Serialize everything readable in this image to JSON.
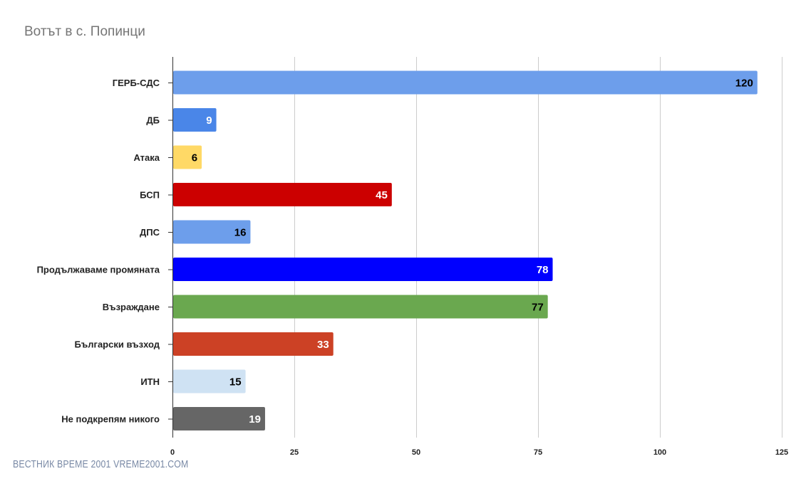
{
  "chart_data": {
    "type": "bar",
    "orientation": "horizontal",
    "title": "Вотът в с. Попинци",
    "xlabel": "",
    "ylabel": "",
    "xlim": [
      0,
      125
    ],
    "x_ticks": [
      0,
      25,
      50,
      75,
      100,
      125
    ],
    "grid": true,
    "legend": "none",
    "categories": [
      "ГЕРБ-СДС",
      "ДБ",
      "Атака",
      "БСП",
      "ДПС",
      "Продължаваме промяната",
      "Възраждане",
      "Български възход",
      "ИТН",
      "Не подкрепям никого"
    ],
    "values": [
      120,
      9,
      6,
      45,
      16,
      78,
      77,
      33,
      15,
      19
    ],
    "colors": [
      "#6d9eeb",
      "#4a86e8",
      "#ffd966",
      "#cc0000",
      "#6d9eeb",
      "#0000ff",
      "#6aa84f",
      "#cc4125",
      "#cfe2f3",
      "#666666"
    ],
    "label_colors": [
      "#000000",
      "#ffffff",
      "#000000",
      "#ffffff",
      "#000000",
      "#ffffff",
      "#000000",
      "#ffffff",
      "#000000",
      "#ffffff"
    ]
  },
  "watermark": "ВЕСТНИК ВРЕМЕ 2001  VREME2001.COM"
}
